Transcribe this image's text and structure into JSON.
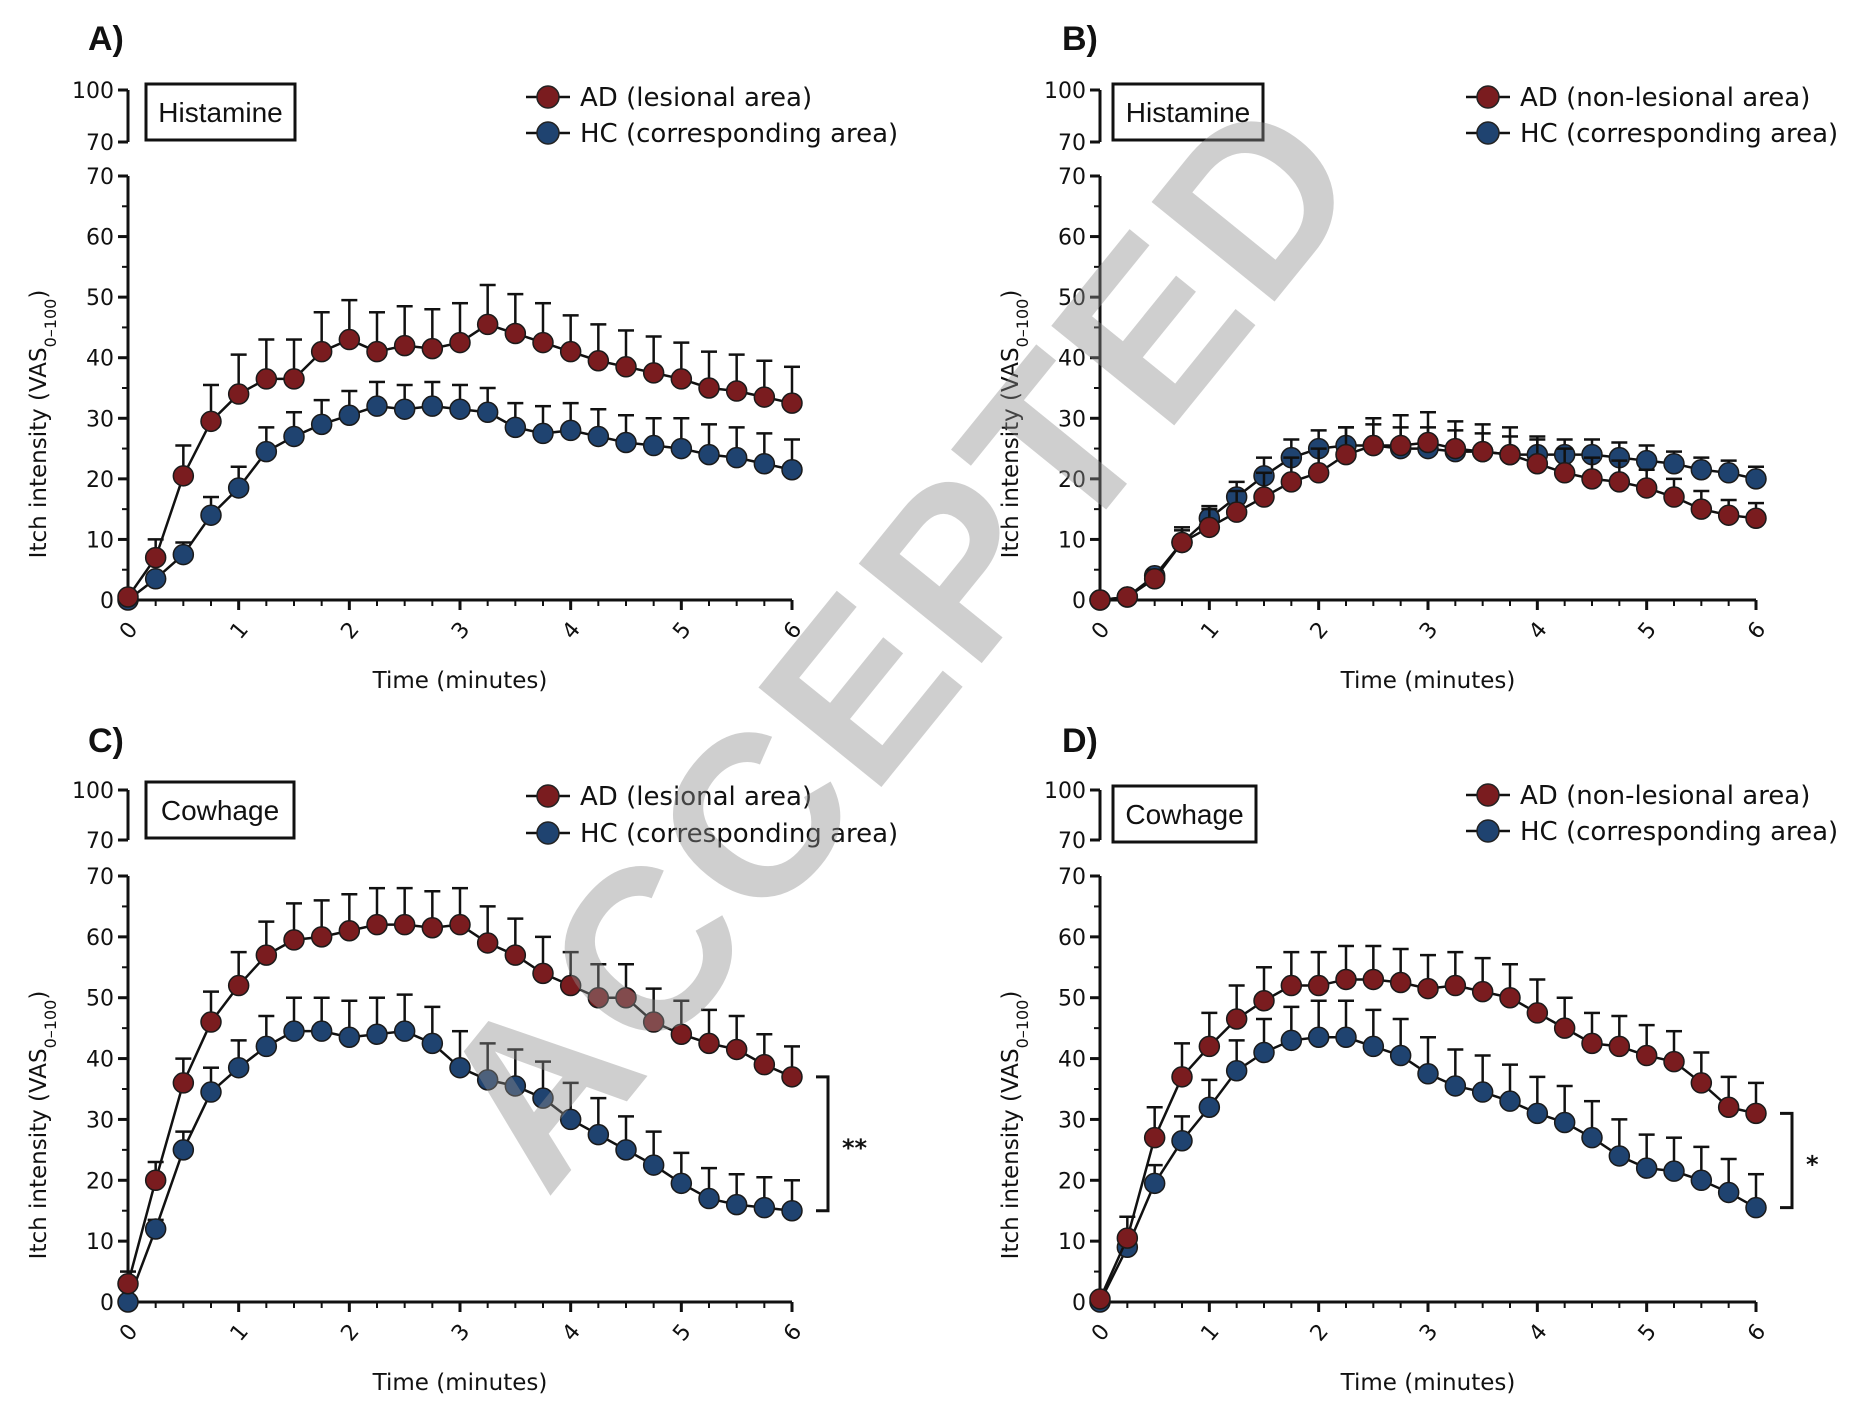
{
  "watermark": "ACCEPTED",
  "colors": {
    "ad": "#7a1c1f",
    "hc": "#1f4370",
    "axis": "#111111"
  },
  "chart_data": [
    {
      "type": "line",
      "panel_label": "A)",
      "box_label": "Histamine",
      "xlabel": "Time (minutes)",
      "ylabel": "Itch intensity (VAS",
      "ylabel_sub": "0–100",
      "ylabel_close": ")",
      "xlim": [
        0,
        6
      ],
      "ylim": [
        0,
        70
      ],
      "y_break_ticks": [
        "70",
        "100"
      ],
      "x_ticks": [
        "0",
        "1",
        "2",
        "3",
        "4",
        "5",
        "6"
      ],
      "y_ticks": [
        "0",
        "10",
        "20",
        "30",
        "40",
        "50",
        "60",
        "70"
      ],
      "x": [
        0,
        0.25,
        0.5,
        0.75,
        1,
        1.25,
        1.5,
        1.75,
        2,
        2.25,
        2.5,
        2.75,
        3,
        3.25,
        3.5,
        3.75,
        4,
        4.25,
        4.5,
        4.75,
        5,
        5.25,
        5.5,
        5.75,
        6
      ],
      "series": [
        {
          "name": "AD (lesional area)",
          "color_key": "ad",
          "values": [
            0.5,
            7,
            20.5,
            29.5,
            34,
            36.5,
            36.5,
            41,
            43,
            41,
            42,
            41.5,
            42.5,
            45.5,
            44,
            42.5,
            41,
            39.5,
            38.5,
            37.5,
            36.5,
            35,
            34.5,
            33.5,
            32.5
          ],
          "errors": [
            0.5,
            3,
            5,
            6,
            6.5,
            6.5,
            6.5,
            6.5,
            6.5,
            6.5,
            6.5,
            6.5,
            6.5,
            6.5,
            6.5,
            6.5,
            6,
            6,
            6,
            6,
            6,
            6,
            6,
            6,
            6
          ]
        },
        {
          "name": "HC (corresponding area)",
          "color_key": "hc",
          "values": [
            0,
            3.5,
            7.5,
            14,
            18.5,
            24.5,
            27,
            29,
            30.5,
            32,
            31.5,
            32,
            31.5,
            31,
            28.5,
            27.5,
            28,
            27,
            26,
            25.5,
            25,
            24,
            23.5,
            22.5,
            21.5
          ],
          "errors": [
            0,
            1,
            2,
            3,
            3.5,
            4,
            4,
            4,
            4,
            4,
            4,
            4,
            4,
            4,
            4,
            4.5,
            4.5,
            4.5,
            4.5,
            4.5,
            5,
            5,
            5,
            5,
            5
          ]
        }
      ],
      "significance": ""
    },
    {
      "type": "line",
      "panel_label": "B)",
      "box_label": "Histamine",
      "xlabel": "Time (minutes)",
      "ylabel": "Itch intensity (VAS",
      "ylabel_sub": "0–100",
      "ylabel_close": ")",
      "xlim": [
        0,
        6
      ],
      "ylim": [
        0,
        70
      ],
      "y_break_ticks": [
        "70",
        "100"
      ],
      "x_ticks": [
        "0",
        "1",
        "2",
        "3",
        "4",
        "5",
        "6"
      ],
      "y_ticks": [
        "0",
        "10",
        "20",
        "30",
        "40",
        "50",
        "60",
        "70"
      ],
      "x": [
        0,
        0.25,
        0.5,
        0.75,
        1,
        1.25,
        1.5,
        1.75,
        2,
        2.25,
        2.5,
        2.75,
        3,
        3.25,
        3.5,
        3.75,
        4,
        4.25,
        4.5,
        4.75,
        5,
        5.25,
        5.5,
        5.75,
        6
      ],
      "series": [
        {
          "name": "AD (non-lesional area)",
          "color_key": "ad",
          "values": [
            0,
            0.5,
            3.5,
            9.5,
            12,
            14.5,
            17,
            19.5,
            21,
            24,
            25.5,
            25.5,
            26,
            25,
            24.5,
            24,
            22.5,
            21,
            20,
            19.5,
            18.5,
            17,
            15,
            14,
            13.5
          ],
          "errors": [
            0,
            0.5,
            1.5,
            2.5,
            3,
            3.5,
            4,
            4,
            4,
            4.5,
            4.5,
            5,
            5,
            4.5,
            4.5,
            4.5,
            4,
            4,
            3.5,
            3.5,
            3,
            3,
            3,
            2.5,
            2.5
          ]
        },
        {
          "name": "HC (corresponding area)",
          "color_key": "hc",
          "values": [
            0,
            0.5,
            4,
            9.5,
            13.5,
            17,
            20.5,
            23.5,
            25,
            25.5,
            25.5,
            25,
            25,
            24.5,
            24.5,
            24,
            24,
            24,
            24,
            23.5,
            23,
            22.5,
            21.5,
            21,
            20
          ],
          "errors": [
            0,
            0.5,
            1,
            2,
            2,
            2.5,
            3,
            3,
            3,
            3,
            3.5,
            3.5,
            3.5,
            3.5,
            3,
            3,
            3,
            2.5,
            2.5,
            2.5,
            2.5,
            2,
            2,
            2,
            2
          ]
        }
      ],
      "significance": ""
    },
    {
      "type": "line",
      "panel_label": "C)",
      "box_label": "Cowhage",
      "xlabel": "Time (minutes)",
      "ylabel": "Itch intensity (VAS",
      "ylabel_sub": "0–100",
      "ylabel_close": ")",
      "xlim": [
        0,
        6
      ],
      "ylim": [
        0,
        70
      ],
      "y_break_ticks": [
        "70",
        "100"
      ],
      "x_ticks": [
        "0",
        "1",
        "2",
        "3",
        "4",
        "5",
        "6"
      ],
      "y_ticks": [
        "0",
        "10",
        "20",
        "30",
        "40",
        "50",
        "60",
        "70"
      ],
      "x": [
        0,
        0.25,
        0.5,
        0.75,
        1,
        1.25,
        1.5,
        1.75,
        2,
        2.25,
        2.5,
        2.75,
        3,
        3.25,
        3.5,
        3.75,
        4,
        4.25,
        4.5,
        4.75,
        5,
        5.25,
        5.5,
        5.75,
        6
      ],
      "series": [
        {
          "name": "AD (lesional area)",
          "color_key": "ad",
          "values": [
            3,
            20,
            36,
            46,
            52,
            57,
            59.5,
            60,
            61,
            62,
            62,
            61.5,
            62,
            59,
            57,
            54,
            52,
            50,
            50,
            46,
            44,
            42.5,
            41.5,
            39,
            37
          ],
          "errors": [
            2,
            3,
            4,
            5,
            5.5,
            5.5,
            6,
            6,
            6,
            6,
            6,
            6,
            6,
            6,
            6,
            6,
            5.5,
            5.5,
            5.5,
            5.5,
            5.5,
            5.5,
            5.5,
            5,
            5
          ]
        },
        {
          "name": "HC (corresponding area)",
          "color_key": "hc",
          "values": [
            0,
            12,
            25,
            34.5,
            38.5,
            42,
            44.5,
            44.5,
            43.5,
            44,
            44.5,
            42.5,
            38.5,
            36.5,
            35.5,
            33.5,
            30,
            27.5,
            25,
            22.5,
            19.5,
            17,
            16,
            15.5,
            15
          ],
          "errors": [
            0,
            1.5,
            3,
            4,
            4.5,
            5,
            5.5,
            5.5,
            6,
            6,
            6,
            6,
            6,
            6,
            6,
            6,
            6,
            6,
            5.5,
            5.5,
            5,
            5,
            5,
            5,
            5
          ]
        }
      ],
      "significance": "**"
    },
    {
      "type": "line",
      "panel_label": "D)",
      "box_label": "Cowhage",
      "xlabel": "Time (minutes)",
      "ylabel": "Itch intensity (VAS",
      "ylabel_sub": "0–100",
      "ylabel_close": ")",
      "xlim": [
        0,
        6
      ],
      "ylim": [
        0,
        70
      ],
      "y_break_ticks": [
        "70",
        "100"
      ],
      "x_ticks": [
        "0",
        "1",
        "2",
        "3",
        "4",
        "5",
        "6"
      ],
      "y_ticks": [
        "0",
        "10",
        "20",
        "30",
        "40",
        "50",
        "60",
        "70"
      ],
      "x": [
        0,
        0.25,
        0.5,
        0.75,
        1,
        1.25,
        1.5,
        1.75,
        2,
        2.25,
        2.5,
        2.75,
        3,
        3.25,
        3.5,
        3.75,
        4,
        4.25,
        4.5,
        4.75,
        5,
        5.25,
        5.5,
        5.75,
        6
      ],
      "series": [
        {
          "name": "AD (non-lesional area)",
          "color_key": "ad",
          "values": [
            0.5,
            10.5,
            27,
            37,
            42,
            46.5,
            49.5,
            52,
            52,
            53,
            53,
            52.5,
            51.5,
            52,
            51,
            50,
            47.5,
            45,
            42.5,
            42,
            40.5,
            39.5,
            36,
            32,
            31
          ],
          "errors": [
            0.5,
            3.5,
            5,
            5.5,
            5.5,
            5.5,
            5.5,
            5.5,
            5.5,
            5.5,
            5.5,
            5.5,
            5.5,
            5.5,
            5.5,
            5.5,
            5.5,
            5,
            5,
            5,
            5,
            5,
            5,
            5,
            5
          ]
        },
        {
          "name": "HC (corresponding area)",
          "color_key": "hc",
          "values": [
            0,
            9,
            19.5,
            26.5,
            32,
            38,
            41,
            43,
            43.5,
            43.5,
            42,
            40.5,
            37.5,
            35.5,
            34.5,
            33,
            31,
            29.5,
            27,
            24,
            22,
            21.5,
            20,
            18,
            15.5
          ],
          "errors": [
            0,
            1.5,
            3,
            4,
            4.5,
            5,
            5.5,
            5.5,
            6,
            6,
            6,
            6,
            6,
            6,
            6,
            6,
            6,
            6,
            6,
            6,
            5.5,
            5.5,
            5.5,
            5.5,
            5.5
          ]
        }
      ],
      "significance": "*"
    }
  ]
}
